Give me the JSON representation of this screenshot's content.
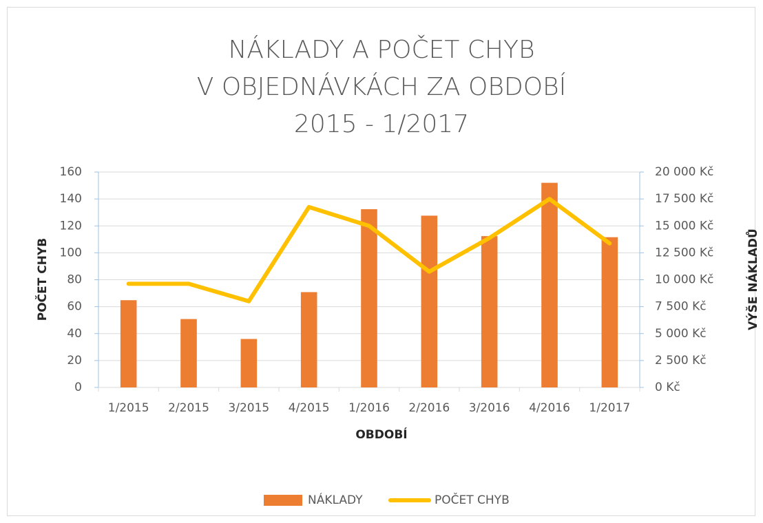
{
  "chart_data": {
    "type": "bar-line",
    "title": [
      "NÁKLADY A POČET CHYB",
      "V OBJEDNÁVKÁCH ZA OBDOBÍ",
      "2015 - 1/2017"
    ],
    "x_label": "OBDOBÍ",
    "y_label": "POČET CHYB",
    "y2_label": "VÝŠE NÁKLADŮ",
    "categories": [
      "1/2015",
      "2/2015",
      "3/2015",
      "4/2015",
      "1/2016",
      "2/2016",
      "3/2016",
      "4/2016",
      "1/2017"
    ],
    "series": [
      {
        "name": "NÁKLADY",
        "type": "bar",
        "axis": "y2",
        "color": "#ed7d31",
        "values": [
          8100,
          6350,
          4500,
          8850,
          16550,
          15950,
          14050,
          19000,
          13950
        ]
      },
      {
        "name": "POČET CHYB",
        "type": "line",
        "axis": "y",
        "color": "#ffc000",
        "values": [
          77,
          77,
          64,
          134,
          120,
          86,
          111,
          140,
          107
        ]
      }
    ],
    "ylim": [
      0,
      160
    ],
    "yticks": [
      0,
      20,
      40,
      60,
      80,
      100,
      120,
      140,
      160
    ],
    "y2lim": [
      0,
      20000
    ],
    "y2ticks": [
      {
        "value": 0,
        "label": "0 Kč"
      },
      {
        "value": 2500,
        "label": "2 500 Kč"
      },
      {
        "value": 5000,
        "label": "5 000 Kč"
      },
      {
        "value": 7500,
        "label": "7 500 Kč"
      },
      {
        "value": 10000,
        "label": "10 000 Kč"
      },
      {
        "value": 12500,
        "label": "12 500 Kč"
      },
      {
        "value": 15000,
        "label": "15 000 Kč"
      },
      {
        "value": 17500,
        "label": "17 500 Kč"
      },
      {
        "value": 20000,
        "label": "20 000 Kč"
      }
    ],
    "grid": true,
    "legend": "bottom"
  }
}
